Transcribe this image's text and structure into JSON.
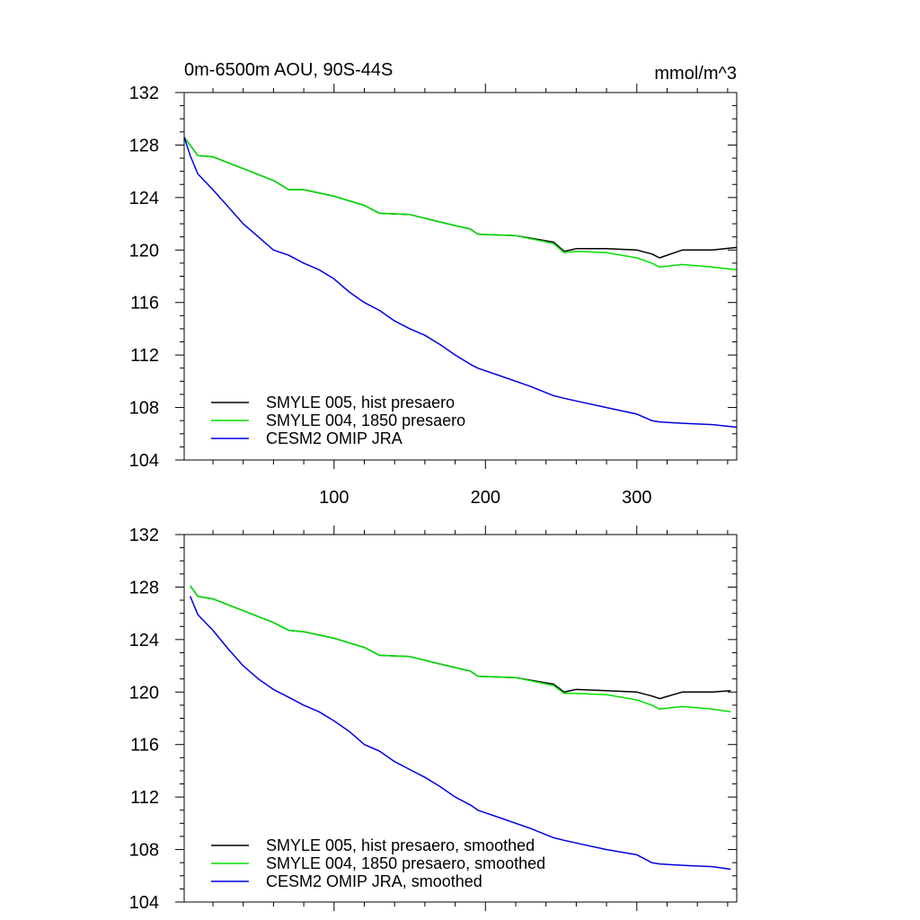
{
  "chart_data": [
    {
      "type": "line",
      "title": "0m-6500m AOU, 90S-44S",
      "units": "mmol/m^3",
      "xlim": [
        1,
        366
      ],
      "ylim": [
        104,
        132
      ],
      "x_ticks": [
        100,
        200,
        300
      ],
      "y_ticks": [
        104,
        108,
        112,
        116,
        120,
        124,
        128,
        132
      ],
      "grid": false,
      "legend_position": "bottom-left",
      "series": [
        {
          "name": "SMYLE 005, hist presaero",
          "color": "#000000",
          "x": [
            1,
            10,
            20,
            40,
            60,
            70,
            80,
            100,
            120,
            130,
            150,
            175,
            190,
            195,
            220,
            245,
            252,
            260,
            280,
            300,
            310,
            315,
            330,
            350,
            366
          ],
          "values": [
            128.6,
            127.2,
            127.1,
            126.2,
            125.3,
            124.6,
            124.6,
            124.1,
            123.4,
            122.8,
            122.7,
            122.0,
            121.6,
            121.2,
            121.1,
            120.6,
            119.9,
            120.1,
            120.1,
            120.0,
            119.7,
            119.4,
            120.0,
            120.0,
            120.2
          ]
        },
        {
          "name": "SMYLE 004, 1850 presaero",
          "color": "#00e000",
          "x": [
            1,
            10,
            20,
            40,
            60,
            70,
            80,
            100,
            120,
            130,
            150,
            175,
            190,
            195,
            220,
            245,
            252,
            260,
            280,
            300,
            310,
            315,
            330,
            350,
            366
          ],
          "values": [
            128.6,
            127.2,
            127.1,
            126.2,
            125.3,
            124.6,
            124.6,
            124.1,
            123.4,
            122.8,
            122.7,
            122.0,
            121.6,
            121.2,
            121.1,
            120.5,
            119.8,
            119.9,
            119.8,
            119.4,
            119.0,
            118.7,
            118.9,
            118.7,
            118.5
          ]
        },
        {
          "name": "CESM2 OMIP JRA",
          "color": "#0000e0",
          "x": [
            1,
            5,
            10,
            20,
            30,
            40,
            50,
            60,
            70,
            80,
            90,
            100,
            110,
            120,
            130,
            140,
            150,
            160,
            170,
            180,
            190,
            195,
            210,
            230,
            245,
            252,
            260,
            280,
            300,
            310,
            315,
            330,
            350,
            366
          ],
          "values": [
            128.6,
            127.2,
            125.8,
            124.6,
            123.3,
            122.0,
            121.0,
            120.0,
            119.6,
            119.0,
            118.5,
            117.8,
            116.8,
            116.0,
            115.4,
            114.6,
            114.0,
            113.5,
            112.8,
            112.0,
            111.3,
            111.0,
            110.4,
            109.6,
            108.9,
            108.7,
            108.5,
            108.0,
            107.5,
            107.0,
            106.9,
            106.8,
            106.7,
            106.5
          ]
        }
      ]
    },
    {
      "type": "line",
      "xlim": [
        1,
        366
      ],
      "ylim": [
        104,
        132
      ],
      "y_ticks": [
        104,
        108,
        112,
        116,
        120,
        124,
        128,
        132
      ],
      "grid": false,
      "legend_position": "bottom-left",
      "series": [
        {
          "name": "SMYLE 005, hist presaero, smoothed",
          "color": "#000000",
          "x": [
            5,
            10,
            20,
            40,
            60,
            70,
            80,
            100,
            120,
            130,
            150,
            175,
            190,
            195,
            220,
            245,
            252,
            260,
            280,
            300,
            310,
            315,
            330,
            350,
            362
          ],
          "values": [
            128.1,
            127.3,
            127.1,
            126.2,
            125.3,
            124.7,
            124.6,
            124.1,
            123.4,
            122.8,
            122.7,
            122.0,
            121.6,
            121.2,
            121.1,
            120.6,
            120.0,
            120.2,
            120.1,
            120.0,
            119.7,
            119.5,
            120.0,
            120.0,
            120.1
          ]
        },
        {
          "name": "SMYLE 004, 1850 presaero, smoothed",
          "color": "#00e000",
          "x": [
            5,
            10,
            20,
            40,
            60,
            70,
            80,
            100,
            120,
            130,
            150,
            175,
            190,
            195,
            220,
            245,
            252,
            260,
            280,
            300,
            310,
            315,
            330,
            350,
            362
          ],
          "values": [
            128.1,
            127.3,
            127.1,
            126.2,
            125.3,
            124.7,
            124.6,
            124.1,
            123.4,
            122.8,
            122.7,
            122.0,
            121.6,
            121.2,
            121.1,
            120.5,
            119.9,
            119.9,
            119.8,
            119.4,
            119.0,
            118.7,
            118.9,
            118.7,
            118.5
          ]
        },
        {
          "name": "CESM2 OMIP JRA, smoothed",
          "color": "#0000e0",
          "x": [
            5,
            10,
            20,
            30,
            40,
            50,
            60,
            70,
            80,
            90,
            100,
            110,
            120,
            130,
            140,
            150,
            160,
            170,
            180,
            190,
            195,
            210,
            230,
            245,
            252,
            260,
            280,
            300,
            310,
            315,
            330,
            350,
            362
          ],
          "values": [
            127.3,
            125.9,
            124.7,
            123.3,
            122.0,
            121.0,
            120.2,
            119.6,
            119.0,
            118.5,
            117.8,
            117.0,
            116.0,
            115.5,
            114.7,
            114.1,
            113.5,
            112.8,
            112.0,
            111.4,
            111.0,
            110.4,
            109.6,
            108.9,
            108.7,
            108.5,
            108.0,
            107.6,
            107.0,
            106.9,
            106.8,
            106.7,
            106.5
          ]
        }
      ]
    }
  ]
}
